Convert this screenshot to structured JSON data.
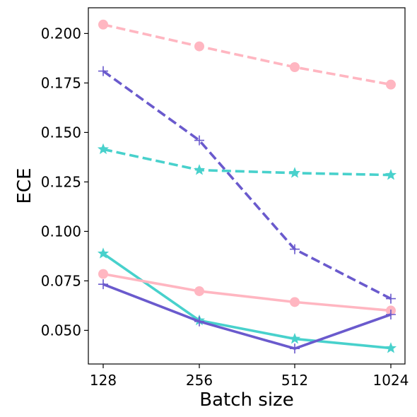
{
  "chart_data": {
    "type": "line",
    "title": "",
    "xlabel": "Batch size",
    "ylabel": "ECE",
    "x": [
      "128",
      "256",
      "512",
      "1024"
    ],
    "ylim": [
      0.033,
      0.213
    ],
    "yticks": [
      "0.050",
      "0.075",
      "0.100",
      "0.125",
      "0.150",
      "0.175",
      "0.200"
    ],
    "grid": false,
    "legend": "none",
    "series": [
      {
        "color": "#ffb6c1",
        "linestyle": "dashed",
        "marker": "circle",
        "values": [
          0.2045,
          0.1935,
          0.183,
          0.1742
        ]
      },
      {
        "color": "#6a5acd",
        "linestyle": "dashed",
        "marker": "plus",
        "values": [
          0.181,
          0.146,
          0.091,
          0.066
        ]
      },
      {
        "color": "#48d1cc",
        "linestyle": "dashed",
        "marker": "star",
        "values": [
          0.1415,
          0.131,
          0.1295,
          0.1285
        ]
      },
      {
        "color": "#48d1cc",
        "linestyle": "solid",
        "marker": "star",
        "values": [
          0.0888,
          0.055,
          0.0457,
          0.041
        ]
      },
      {
        "color": "#ffb6c1",
        "linestyle": "solid",
        "marker": "circle",
        "values": [
          0.0785,
          0.0698,
          0.0643,
          0.06
        ]
      },
      {
        "color": "#6a5acd",
        "linestyle": "solid",
        "marker": "plus",
        "values": [
          0.0733,
          0.0545,
          0.0408,
          0.058
        ]
      }
    ]
  }
}
